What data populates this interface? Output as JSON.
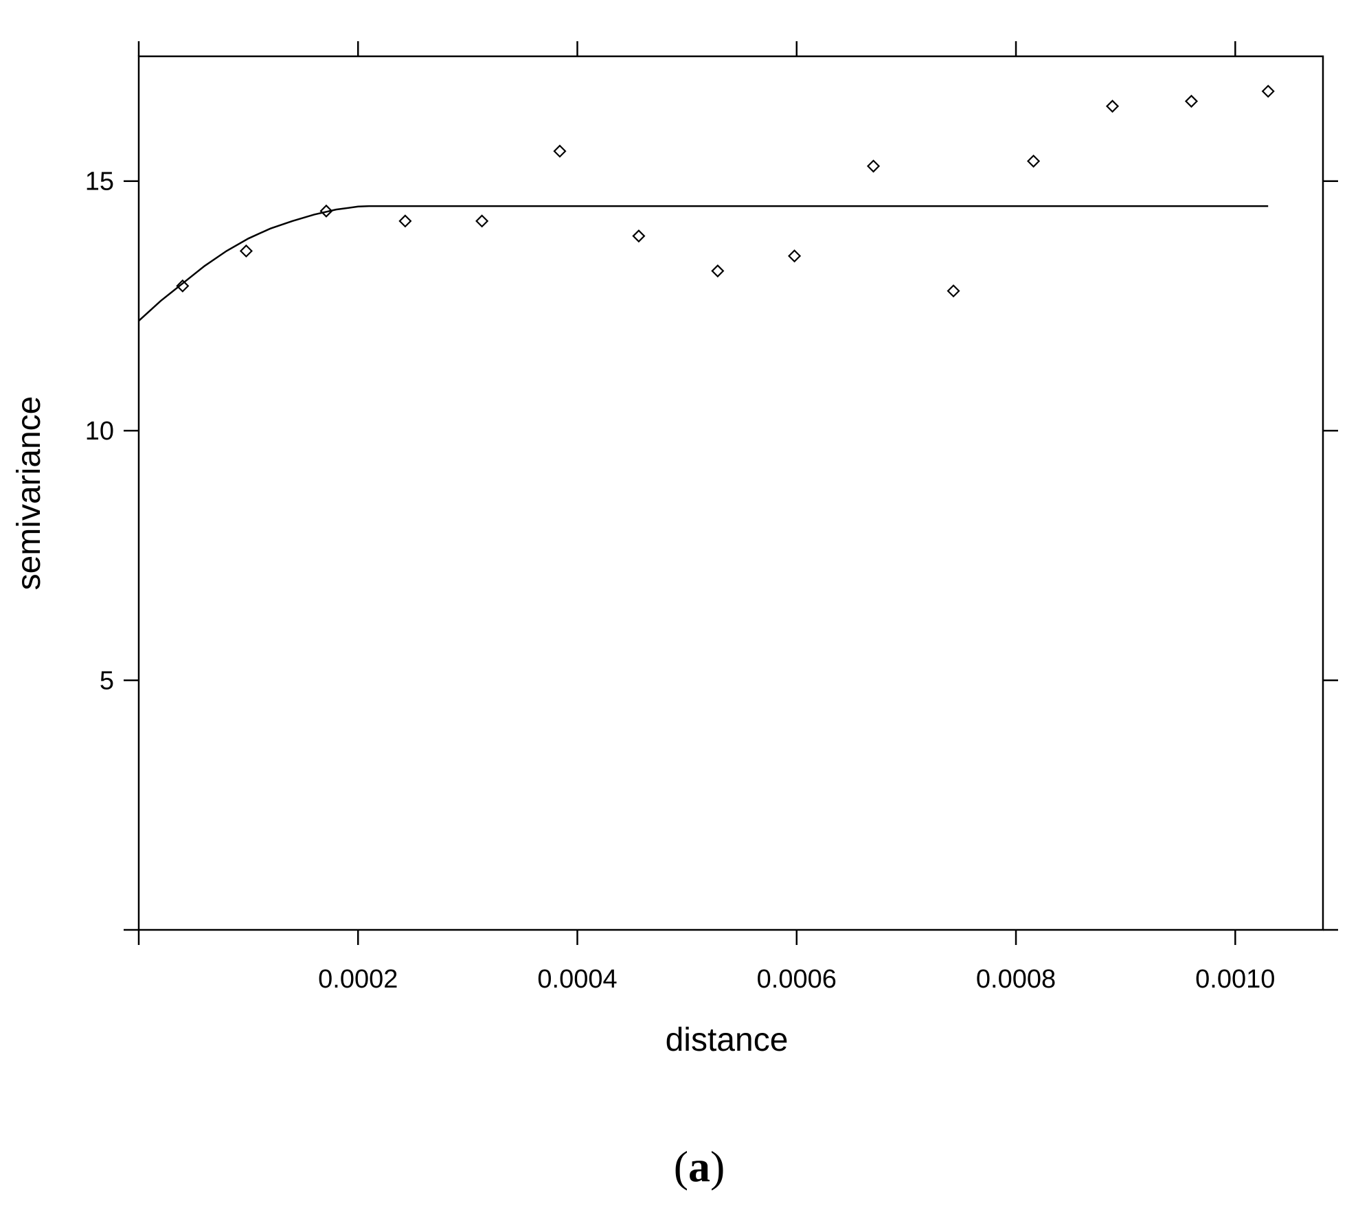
{
  "chart_data": {
    "type": "scatter",
    "xlabel": "distance",
    "ylabel": "semivariance",
    "xlim": [
      0,
      0.00108
    ],
    "ylim": [
      0,
      17.5
    ],
    "x_ticks": [
      0.0002,
      0.0004,
      0.0006,
      0.0008,
      0.001
    ],
    "x_tick_labels": [
      "0.0002",
      "0.0004",
      "0.0006",
      "0.0008",
      "0.0010"
    ],
    "y_ticks": [
      5,
      10,
      15
    ],
    "y_tick_labels": [
      "5",
      "10",
      "15"
    ],
    "grid": false,
    "marker": "open-diamond",
    "points": [
      {
        "x": 4e-05,
        "y": 12.9
      },
      {
        "x": 9.8e-05,
        "y": 13.6
      },
      {
        "x": 0.000171,
        "y": 14.4
      },
      {
        "x": 0.000243,
        "y": 14.2
      },
      {
        "x": 0.000313,
        "y": 14.2
      },
      {
        "x": 0.000384,
        "y": 15.6
      },
      {
        "x": 0.000456,
        "y": 13.9
      },
      {
        "x": 0.000528,
        "y": 13.2
      },
      {
        "x": 0.000598,
        "y": 13.5
      },
      {
        "x": 0.00067,
        "y": 15.3
      },
      {
        "x": 0.000743,
        "y": 12.8
      },
      {
        "x": 0.000816,
        "y": 15.4
      },
      {
        "x": 0.000888,
        "y": 16.5
      },
      {
        "x": 0.00096,
        "y": 16.6
      },
      {
        "x": 0.00103,
        "y": 16.8
      }
    ],
    "fitted_curve": {
      "type": "line",
      "x": [
        0,
        2e-05,
        4e-05,
        6e-05,
        8e-05,
        0.0001,
        0.00012,
        0.00014,
        0.00016,
        0.00018,
        0.0002,
        0.00021,
        0.00103
      ],
      "y": [
        12.2,
        12.6,
        12.95,
        13.3,
        13.6,
        13.85,
        14.05,
        14.2,
        14.33,
        14.43,
        14.49,
        14.5,
        14.5
      ]
    }
  },
  "caption": {
    "open": "(",
    "letter": "a",
    "close": ")"
  }
}
